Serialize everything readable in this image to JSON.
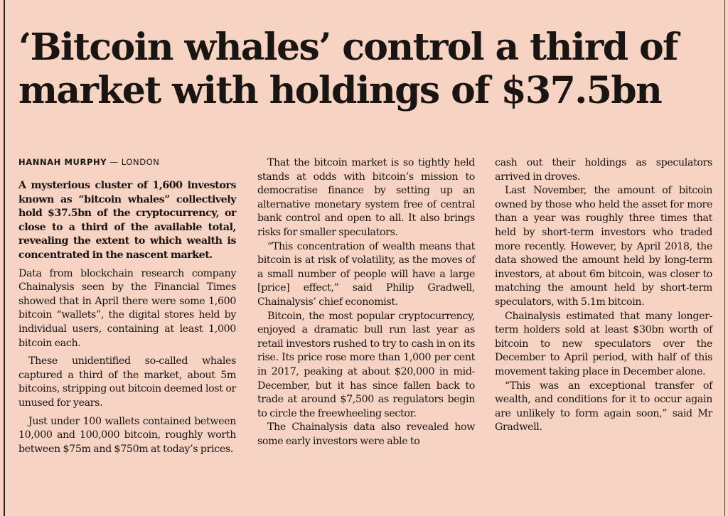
{
  "article": {
    "headline": "‘Bitcoin whales’ control a third of market with holdings of $37.5bn",
    "byline": {
      "author": "HANNAH MURPHY",
      "separator": " — ",
      "location": "LONDON"
    },
    "column1": [
      "A mysterious cluster of 1,600 investors known as “bitcoin whales” collectively hold $37.5bn of the cryptocurrency, or close to a third of the available total, revealing the extent to which wealth is concentrated in the nascent market.",
      "Data from blockchain research company Chainalysis seen by the Financial Times showed that in April there were some 1,600 bitcoin “wallets”, the digital stores held by individual users, containing at least 1,000 bitcoin each.",
      "These unidentified so-called whales captured a third of the market, about 5m bitcoins, stripping out bitcoin deemed lost or unused for years.",
      "Just under 100 wallets contained between 10,000 and 100,000 bitcoin, roughly worth between $75m and $750m at today’s prices."
    ],
    "column2": [
      "That the bitcoin market is so tightly held stands at odds with bitcoin’s mission to democratise finance by setting up an alternative monetary system free of central bank control and open to all. It also brings risks for smaller speculators.",
      "“This concentration of wealth means that bitcoin is at risk of volatility, as the moves of a small number of people will have a large [price] effect,” said Philip Gradwell, Chainalysis’ chief economist.",
      "Bitcoin, the most popular cryptocurrency, enjoyed a dramatic bull run last year as retail investors rushed to try to cash in on its rise. Its price rose more than 1,000 per cent in 2017, peaking at about $20,000 in mid-December, but it has since fallen back to trade at around $7,500 as regulators begin to circle the freewheeling sector.",
      "The Chainalysis data also revealed how some early investors were able to"
    ],
    "column3": [
      "cash out their holdings as speculators arrived in droves.",
      "Last November, the amount of bitcoin owned by those who held the asset for more than a year was roughly three times that held by short-term investors who traded more recently. However, by April 2018, the data showed the amount held by long-term investors, at about 6m bitcoin, was closer to matching the amount held by short-term speculators, with 5.1m bitcoin.",
      "Chainalysis estimated that many longer-term holders sold at least $30bn worth of bitcoin to new speculators over the December to April period, with half of this movement taking place in December alone.",
      "“This was an exceptional transfer of wealth, and conditions for it to occur again are unlikely to form again soon,” said Mr Gradwell."
    ]
  },
  "colors": {
    "background": "#f7d3c3",
    "text": "#1a1412",
    "rule": "#2a2220"
  }
}
